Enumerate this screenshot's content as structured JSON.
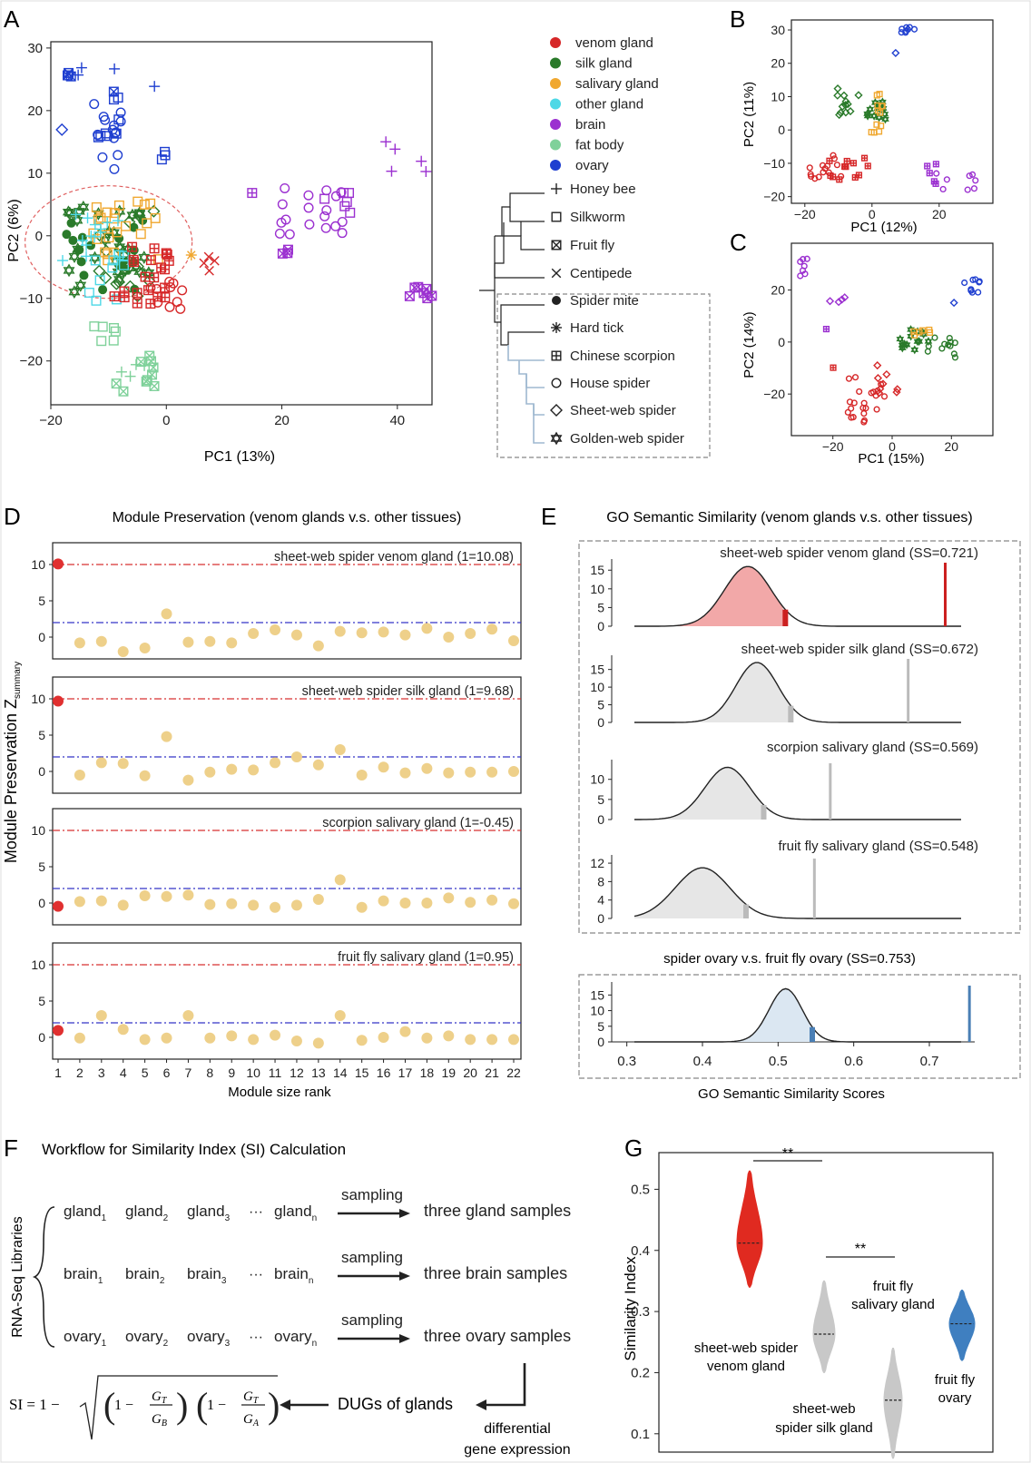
{
  "panels": {
    "A": {
      "letter": "A",
      "xlabel": "PC1 (13%)",
      "ylabel": "PC2 (6%)",
      "xticks": [
        "−20",
        "0",
        "20",
        "40"
      ],
      "yticks": [
        "30",
        "20",
        "10",
        "0",
        "−10",
        "−20"
      ],
      "legend": [
        "venom gland",
        "silk gland",
        "salivary gland",
        "other gland",
        "brain",
        "fat body",
        "ovary"
      ],
      "legend_colors": [
        "#d62728",
        "#2a7a2a",
        "#f0a830",
        "#4dd8e6",
        "#9b30d0",
        "#7fd19a",
        "#1f3fd0"
      ],
      "species": [
        "Honey bee",
        "Silkworm",
        "Fruit fly",
        "Centipede",
        "Spider mite",
        "Hard tick",
        "Chinese scorpion",
        "House spider",
        "Sheet-web spider",
        "Golden-web spider"
      ]
    },
    "B": {
      "letter": "B",
      "xlabel": "PC1 (12%)",
      "ylabel": "PC2 (11%)",
      "xticks": [
        "−20",
        "0",
        "20"
      ],
      "yticks": [
        "30",
        "20",
        "10",
        "0",
        "−10",
        "−20"
      ]
    },
    "C": {
      "letter": "C",
      "xlabel": "PC1 (15%)",
      "ylabel": "PC2 (14%)",
      "xticks": [
        "−20",
        "0",
        "20"
      ],
      "yticks": [
        "20",
        "0",
        "−20"
      ]
    },
    "D": {
      "letter": "D",
      "title": "Module Preservation (venom glands v.s. other tissues)",
      "ylabel_main": "Module Preservation Z",
      "ylabel_sub": "summary",
      "xlabel": "Module size rank",
      "subplots": [
        "sheet-web spider venom gland (1=10.08)",
        "sheet-web spider silk gland (1=9.68)",
        "scorpion salivary gland (1=-0.45)",
        "fruit fly salivary gland (1=0.95)"
      ],
      "xticks": [
        "1",
        "2",
        "3",
        "4",
        "5",
        "6",
        "7",
        "8",
        "9",
        "10",
        "11",
        "12",
        "13",
        "14",
        "15",
        "16",
        "17",
        "18",
        "19",
        "20",
        "21",
        "22"
      ],
      "yticks": [
        "10",
        "5",
        "0"
      ]
    },
    "E": {
      "letter": "E",
      "title": "GO Semantic Similarity (venom glands v.s. other tissues)",
      "subplots": [
        "sheet-web spider venom gland (SS=0.721)",
        "sheet-web spider silk gland (SS=0.672)",
        "scorpion salivary gland (SS=0.569)",
        "fruit fly salivary gland (SS=0.548)"
      ],
      "ovary_title": "spider ovary v.s. fruit fly ovary (SS=0.753)",
      "yticks": [
        [
          "15",
          "10",
          "5",
          "0"
        ],
        [
          "15",
          "10",
          "5",
          "0"
        ],
        [
          "10",
          "5",
          "0"
        ],
        [
          "12",
          "8",
          "4",
          "0"
        ],
        [
          "15",
          "10",
          "5",
          "0"
        ]
      ],
      "xticks": [
        "0.3",
        "0.4",
        "0.5",
        "0.6",
        "0.7"
      ],
      "xlabel": "GO Semantic Similarity Scores"
    },
    "F": {
      "letter": "F",
      "title": "Workflow for Similarity Index (SI) Calculation",
      "side_label": "RNA-Seq Libraries",
      "rows": [
        {
          "items": [
            "gland",
            "gland",
            "gland",
            "gland"
          ],
          "subs": [
            "1",
            "2",
            "3",
            "n"
          ],
          "arrow": "sampling",
          "result": "three gland samples"
        },
        {
          "items": [
            "brain",
            "brain",
            "brain",
            "brain"
          ],
          "subs": [
            "1",
            "2",
            "3",
            "n"
          ],
          "arrow": "sampling",
          "result": "three brain samples"
        },
        {
          "items": [
            "ovary",
            "ovary",
            "ovary",
            "ovary"
          ],
          "subs": [
            "1",
            "2",
            "3",
            "n"
          ],
          "arrow": "sampling",
          "result": "three ovary samples"
        }
      ],
      "dots": "···",
      "dugs": "DUGs of glands",
      "diff1": "differential",
      "diff2": "gene expression",
      "formula": {
        "si": "SI = 1 −",
        "one": "1 −",
        "gt": "G",
        "t_sub": "T",
        "gb": "G",
        "b_sub": "B",
        "ga": "G",
        "a_sub": "A"
      }
    },
    "G": {
      "letter": "G",
      "ylabel": "Similarity Index",
      "yticks": [
        "0.5",
        "0.4",
        "0.3",
        "0.2",
        "0.1"
      ],
      "sig": [
        "**",
        "**"
      ],
      "labels": [
        [
          "sheet-web spider",
          "venom gland"
        ],
        [
          "sheet-web",
          "spider silk gland"
        ],
        [
          "fruit fly",
          "salivary gland"
        ],
        [
          "fruit fly",
          "ovary"
        ]
      ],
      "colors": [
        "#e02a20",
        "#c8c8c8",
        "#c8c8c8",
        "#3f7fc0"
      ]
    }
  },
  "chart_data": [
    {
      "type": "scatter",
      "panel": "A",
      "xlabel": "PC1 (13%)",
      "ylabel": "PC2 (6%)",
      "xlim": [
        -20,
        46
      ],
      "ylim": [
        -27,
        31
      ]
    },
    {
      "type": "scatter",
      "panel": "D",
      "xlabel": "Module size rank",
      "series": [
        {
          "name": "sheet-web spider venom gland (1=10.08)",
          "values": [
            10.08,
            -0.8,
            -0.6,
            -2.0,
            -1.5,
            3.2,
            -0.7,
            -0.6,
            -0.8,
            0.5,
            1.0,
            0.3,
            -1.2,
            0.8,
            0.6,
            0.7,
            0.3,
            1.2,
            0.0,
            0.5,
            1.1,
            -0.5
          ]
        },
        {
          "name": "sheet-web spider silk gland (1=9.68)",
          "values": [
            9.68,
            -0.5,
            1.2,
            1.1,
            -0.6,
            4.8,
            -1.2,
            -0.1,
            0.3,
            0.2,
            1.2,
            2.0,
            0.9,
            3.0,
            -0.5,
            0.6,
            -0.2,
            0.4,
            -0.2,
            -0.1,
            -0.1,
            0.0
          ]
        },
        {
          "name": "scorpion salivary gland (1=-0.45)",
          "values": [
            -0.45,
            0.2,
            0.3,
            -0.3,
            1.0,
            0.9,
            1.1,
            -0.2,
            -0.1,
            -0.3,
            -0.6,
            -0.3,
            0.5,
            3.2,
            -0.6,
            0.3,
            0.0,
            0.0,
            0.7,
            0.1,
            0.4,
            -0.1
          ]
        },
        {
          "name": "fruit fly salivary gland (1=0.95)",
          "values": [
            0.95,
            -0.1,
            3.0,
            1.1,
            -0.3,
            -0.1,
            3.0,
            -0.1,
            0.2,
            -0.3,
            0.3,
            -0.5,
            -0.8,
            3.0,
            -0.4,
            0.0,
            0.8,
            -0.1,
            0.2,
            -0.3,
            -0.3,
            -0.3
          ]
        }
      ]
    },
    {
      "type": "area",
      "panel": "E",
      "xlabel": "GO Semantic Similarity Scores",
      "xlim": [
        0.28,
        0.76
      ],
      "series": [
        {
          "name": "sheet-web spider venom gland (SS=0.721)",
          "mean": 0.46,
          "sd": 0.031,
          "peak": 16,
          "ss": 0.721
        },
        {
          "name": "sheet-web spider silk gland (SS=0.672)",
          "mean": 0.472,
          "sd": 0.028,
          "peak": 17,
          "ss": 0.672
        },
        {
          "name": "scorpion salivary gland (SS=0.569)",
          "mean": 0.433,
          "sd": 0.03,
          "peak": 13,
          "ss": 0.569
        },
        {
          "name": "fruit fly salivary gland (SS=0.548)",
          "mean": 0.4,
          "sd": 0.036,
          "peak": 11,
          "ss": 0.548
        },
        {
          "name": "spider ovary v.s. fruit fly ovary (SS=0.753)",
          "mean": 0.51,
          "sd": 0.022,
          "peak": 17,
          "ss": 0.753
        }
      ]
    },
    {
      "type": "violin",
      "panel": "G",
      "ylabel": "Similarity Index",
      "ylim": [
        0.07,
        0.56
      ],
      "series": [
        {
          "name": "sheet-web spider venom gland",
          "median": 0.412,
          "min": 0.34,
          "max": 0.53
        },
        {
          "name": "sheet-web spider silk gland",
          "median": 0.263,
          "min": 0.2,
          "max": 0.35
        },
        {
          "name": "fruit fly salivary gland",
          "median": 0.155,
          "min": 0.06,
          "max": 0.24
        },
        {
          "name": "fruit fly ovary",
          "median": 0.28,
          "min": 0.22,
          "max": 0.335
        }
      ]
    }
  ]
}
